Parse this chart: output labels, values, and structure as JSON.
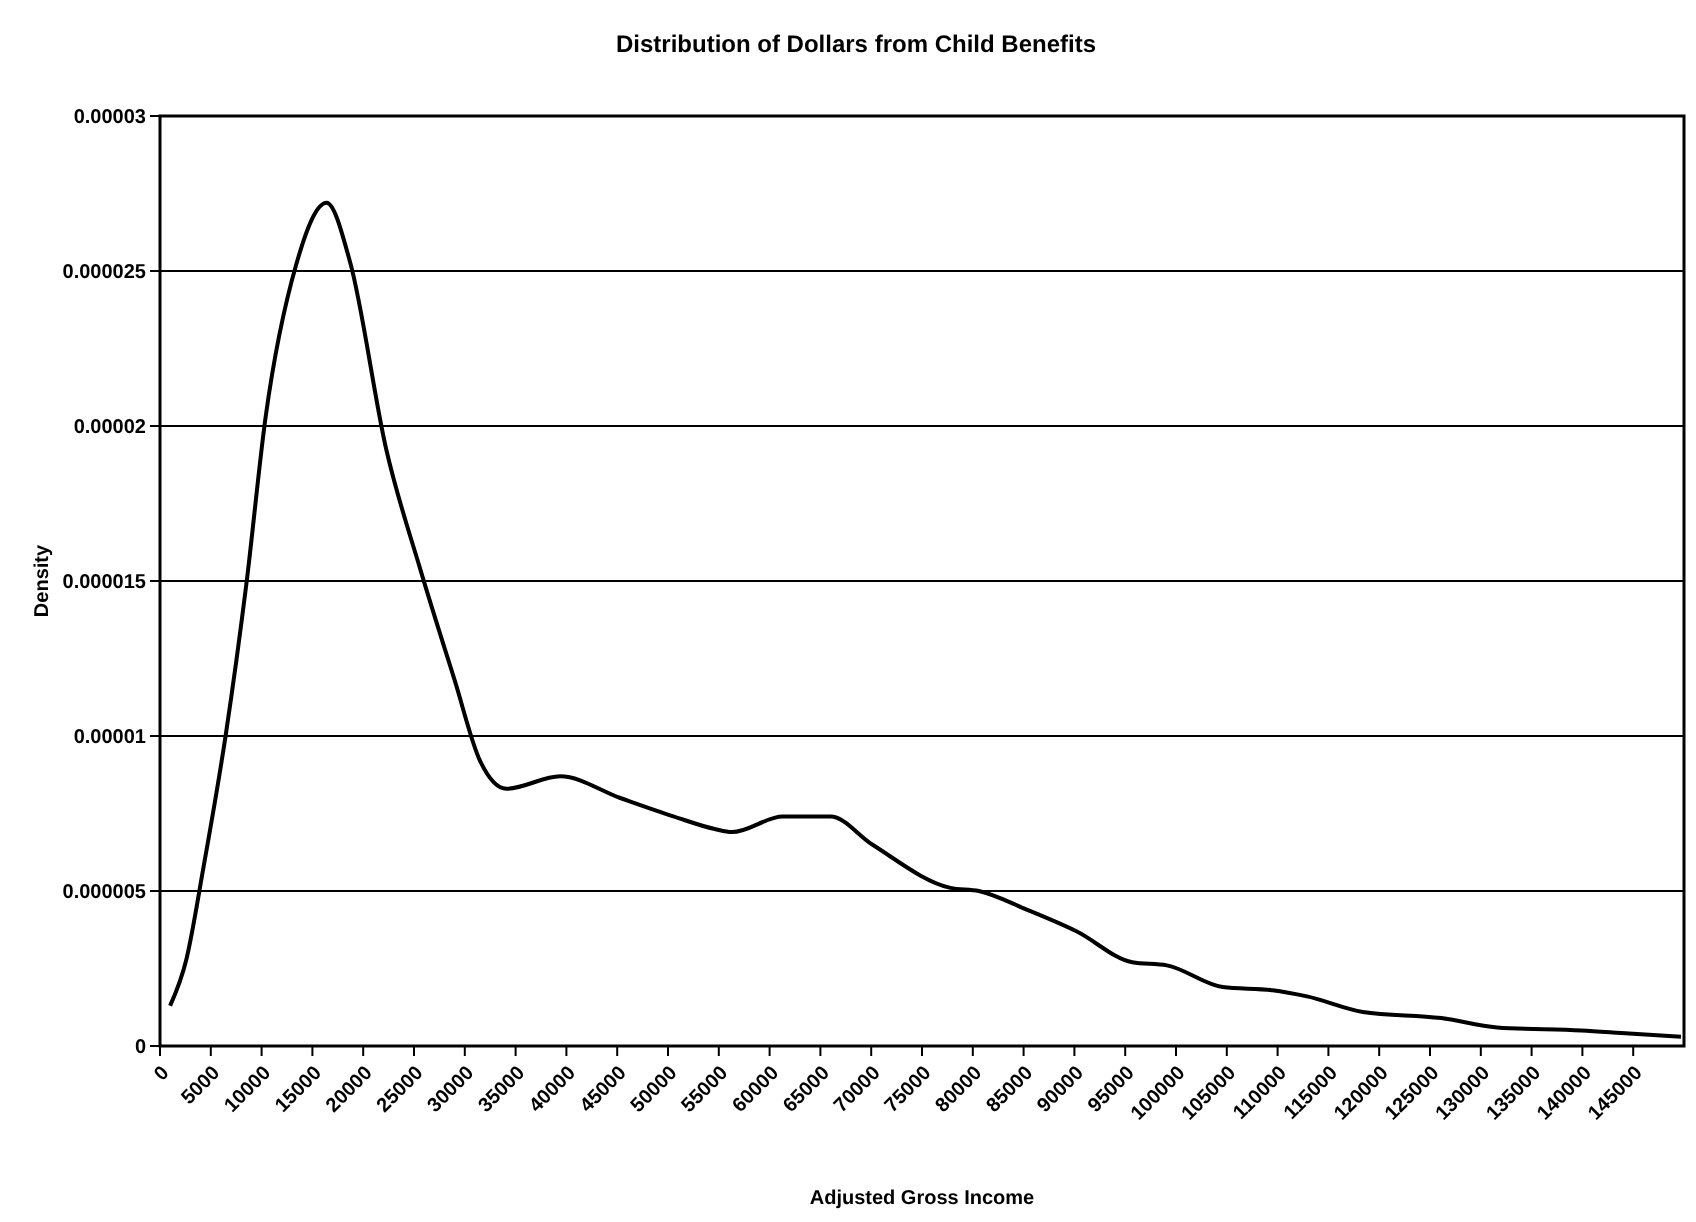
{
  "chart_data": {
    "type": "line",
    "title": "Distribution of Dollars from Child Benefits",
    "xlabel": "Adjusted Gross Income",
    "ylabel": "Density",
    "series": [
      {
        "color": "#000000",
        "x": [
          1000,
          2600,
          4300,
          6500,
          8500,
          10400,
          13400,
          16400,
          18700,
          22300,
          25600,
          29000,
          31500,
          34100,
          39400,
          45300,
          50600,
          54600,
          56300,
          61300,
          66000,
          70100,
          77800,
          80600,
          85300,
          90200,
          95700,
          99100,
          104600,
          109500,
          112900,
          118400,
          126100,
          131600,
          139900,
          144600,
          149700
        ],
        "values": [
          1.3e-06,
          2.8e-06,
          5.8e-06,
          1.01e-05,
          1.49e-05,
          2.03e-05,
          2.52e-05,
          2.72e-05,
          2.53e-05,
          1.92e-05,
          1.54e-05,
          1.18e-05,
          9.2e-06,
          8.3e-06,
          8.7e-06,
          8e-06,
          7.4e-06,
          7e-06,
          6.9e-06,
          7.4e-06,
          7.4e-06,
          6.5e-06,
          5.1e-06,
          5e-06,
          4.4e-06,
          3.7e-06,
          2.7e-06,
          2.6e-06,
          1.9e-06,
          1.8e-06,
          1.6e-06,
          1.1e-06,
          9e-07,
          6e-07,
          5e-07,
          4e-07,
          3e-07
        ]
      }
    ],
    "xlim": [
      0,
      150000
    ],
    "xticks": [
      0,
      5000,
      10000,
      15000,
      20000,
      25000,
      30000,
      35000,
      40000,
      45000,
      50000,
      55000,
      60000,
      65000,
      70000,
      75000,
      80000,
      85000,
      90000,
      95000,
      100000,
      105000,
      110000,
      115000,
      120000,
      125000,
      130000,
      135000,
      140000,
      145000
    ],
    "ylim": [
      0,
      3e-05
    ],
    "yticks": [
      {
        "value": 0,
        "label": "0"
      },
      {
        "value": 5e-06,
        "label": "0.000005"
      },
      {
        "value": 1e-05,
        "label": "0.00001"
      },
      {
        "value": 1.5e-05,
        "label": "0.000015"
      },
      {
        "value": 2e-05,
        "label": "0.00002"
      },
      {
        "value": 2.5e-05,
        "label": "0.000025"
      },
      {
        "value": 3e-05,
        "label": "0.00003"
      }
    ],
    "grid": "y",
    "marker": "none",
    "line_style": "solid"
  }
}
